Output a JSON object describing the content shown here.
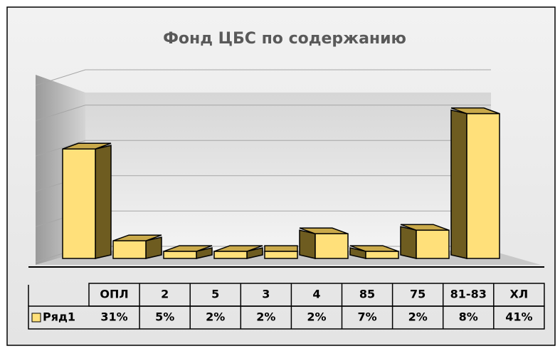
{
  "chart_data": {
    "type": "bar3d",
    "title": "Фонд ЦБС по содержанию",
    "categories": [
      "ОПЛ",
      "2",
      "5",
      "3",
      "4",
      "85",
      "75",
      "81-83",
      "ХЛ"
    ],
    "series": [
      {
        "name": "Ряд1",
        "color": "#ffe07a",
        "values": [
          31,
          5,
          2,
          2,
          2,
          7,
          2,
          8,
          41
        ],
        "value_labels": [
          "31%",
          "5%",
          "2%",
          "2%",
          "2%",
          "7%",
          "2%",
          "8%",
          "41%"
        ]
      }
    ],
    "ylim": [
      0,
      50
    ],
    "yticks": [
      0,
      10,
      20,
      30,
      40,
      50
    ],
    "grid": true
  }
}
